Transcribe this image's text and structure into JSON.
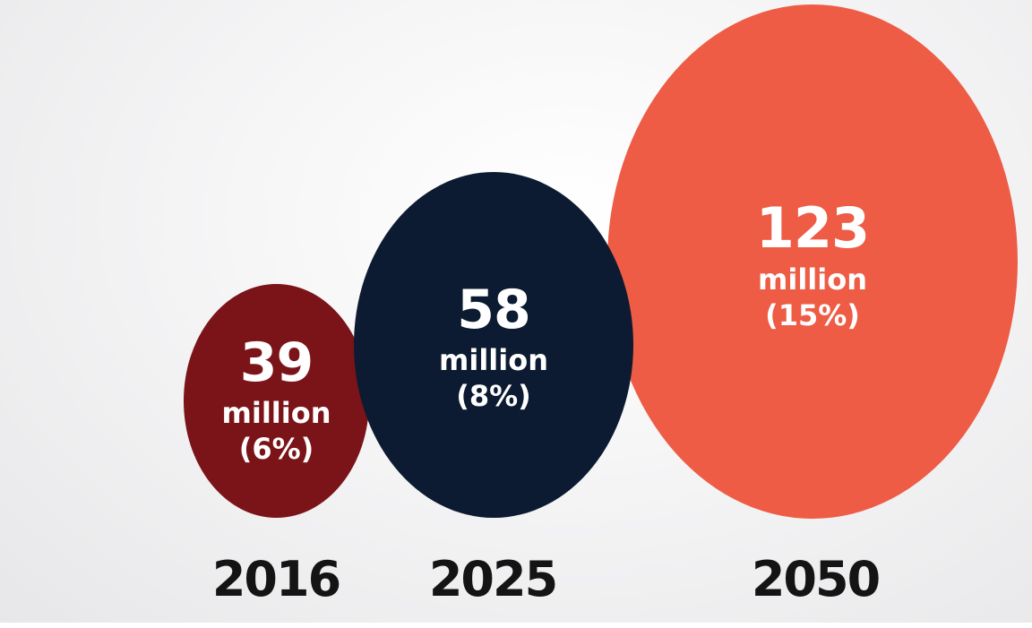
{
  "chart_data": {
    "type": "bubble",
    "categories": [
      "2016",
      "2025",
      "2050"
    ],
    "values": [
      39,
      58,
      123
    ],
    "unit": "million",
    "percents": [
      "(6%)",
      "(8%)",
      "(15%)"
    ],
    "value_labels": [
      "39",
      "58",
      "123"
    ],
    "colors": [
      "#7b1418",
      "#0c1b31",
      "#ee5c45"
    ]
  }
}
